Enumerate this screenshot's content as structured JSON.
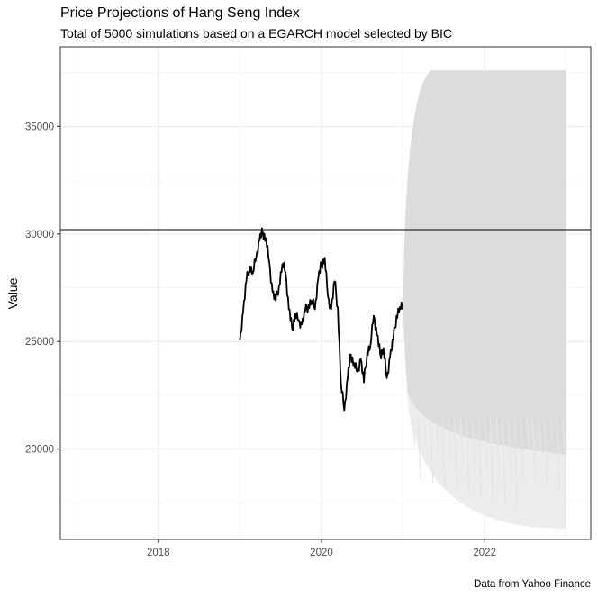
{
  "chart_data": {
    "type": "line",
    "title": "Price Projections of Hang Seng Index",
    "subtitle": "Total of 5000 simulations based on a EGARCH model selected by BIC",
    "caption": "Data from Yahoo Finance",
    "xlabel": "",
    "ylabel": "Value",
    "xlim": [
      2016.8,
      2023.3
    ],
    "ylim": [
      15800,
      38700
    ],
    "x_ticks": [
      2018,
      2020,
      2022
    ],
    "y_ticks": [
      20000,
      25000,
      30000,
      35000
    ],
    "grid": true,
    "reference_line": {
      "orientation": "horizontal",
      "y": 30200
    },
    "history": {
      "x": [
        2019.0,
        2019.04,
        2019.08,
        2019.12,
        2019.16,
        2019.2,
        2019.24,
        2019.28,
        2019.32,
        2019.36,
        2019.4,
        2019.44,
        2019.48,
        2019.52,
        2019.56,
        2019.6,
        2019.64,
        2019.68,
        2019.72,
        2019.76,
        2019.8,
        2019.84,
        2019.88,
        2019.92,
        2019.96,
        2020.0,
        2020.04,
        2020.08,
        2020.12,
        2020.16,
        2020.2,
        2020.24,
        2020.28,
        2020.32,
        2020.36,
        2020.4,
        2020.44,
        2020.48,
        2020.52,
        2020.56,
        2020.6,
        2020.64,
        2020.68,
        2020.72,
        2020.76,
        2020.8,
        2020.84,
        2020.88,
        2020.92,
        2020.96,
        2021.0
      ],
      "values": [
        25100,
        26400,
        27800,
        28500,
        28200,
        28900,
        29700,
        30100,
        29800,
        28700,
        27300,
        26900,
        27600,
        28600,
        28200,
        26500,
        25600,
        26300,
        26000,
        25800,
        26400,
        26700,
        26900,
        26500,
        27900,
        28600,
        28900,
        27100,
        26500,
        27800,
        26600,
        23000,
        21800,
        23300,
        24400,
        24000,
        23600,
        24200,
        23100,
        24500,
        24800,
        26200,
        25300,
        24400,
        24700,
        23300,
        24300,
        25100,
        26200,
        26600,
        26500
      ]
    },
    "simulations": {
      "count": 5000,
      "start_x": 2021.0,
      "end_x": 2023.0,
      "start_value": 26500,
      "upper_cap": 37600,
      "lower_dense": 21000,
      "lower_extreme": 16300
    }
  }
}
